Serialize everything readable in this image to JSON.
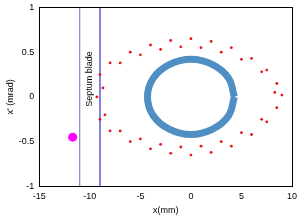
{
  "chart_data": {
    "type": "scatter",
    "x_label": "x(mm)",
    "y_label": "x' (mrad)",
    "xlim": [
      -15,
      10
    ],
    "xticks": [
      -15,
      -10,
      -5,
      0,
      5,
      10
    ],
    "ylim": [
      -1,
      1
    ],
    "yticks": [
      -1,
      -0.5,
      0,
      0.5,
      1
    ],
    "grid": false,
    "series": [
      {
        "color": "#e8141a",
        "marker": "dot",
        "x": [
          -8,
          -6,
          -4,
          -2,
          0,
          2,
          4,
          6,
          7.5,
          8.5,
          9,
          8.5,
          7.5,
          6,
          4,
          2,
          0,
          -2,
          -4,
          -6,
          -8,
          -9,
          -9.3,
          -9,
          -7,
          -5,
          -3,
          -1,
          1,
          3,
          5,
          7,
          8.3,
          7,
          5,
          3,
          1,
          -1,
          -3,
          -5,
          -7,
          -8.5,
          -8.7
        ],
        "y": [
          0.38,
          0.5,
          0.58,
          0.63,
          0.65,
          0.62,
          0.55,
          0.43,
          0.3,
          0.15,
          0.02,
          -0.12,
          -0.28,
          -0.42,
          -0.55,
          -0.62,
          -0.65,
          -0.63,
          -0.58,
          -0.5,
          -0.38,
          -0.25,
          0,
          0.25,
          0.38,
          0.47,
          0.53,
          0.56,
          0.55,
          0.5,
          0.42,
          0.28,
          0.05,
          -0.25,
          -0.4,
          -0.5,
          -0.55,
          -0.56,
          -0.53,
          -0.47,
          -0.38,
          -0.2,
          0.1
        ]
      },
      {
        "color": "#4f8fc4",
        "marker": "none",
        "line_style": "solid",
        "x": [
          4.3,
          3.72,
          2.15,
          0,
          -2.15,
          -3.72,
          -4.3,
          -3.72,
          -2.15,
          0,
          2.15,
          3.72,
          4.3
        ],
        "y": [
          0,
          0.21,
          0.36,
          0.42,
          0.36,
          0.21,
          0,
          -0.21,
          -0.36,
          -0.42,
          -0.36,
          -0.21,
          0
        ]
      },
      {
        "color": "#ff00ff",
        "marker": "circle",
        "x": [
          -11.7
        ],
        "y": [
          -0.45
        ]
      }
    ],
    "annotations": [
      {
        "text": "Septum blade",
        "color": "#7070e0",
        "x": [
          -11,
          -9
        ],
        "y": [
          -1,
          1
        ]
      }
    ]
  }
}
